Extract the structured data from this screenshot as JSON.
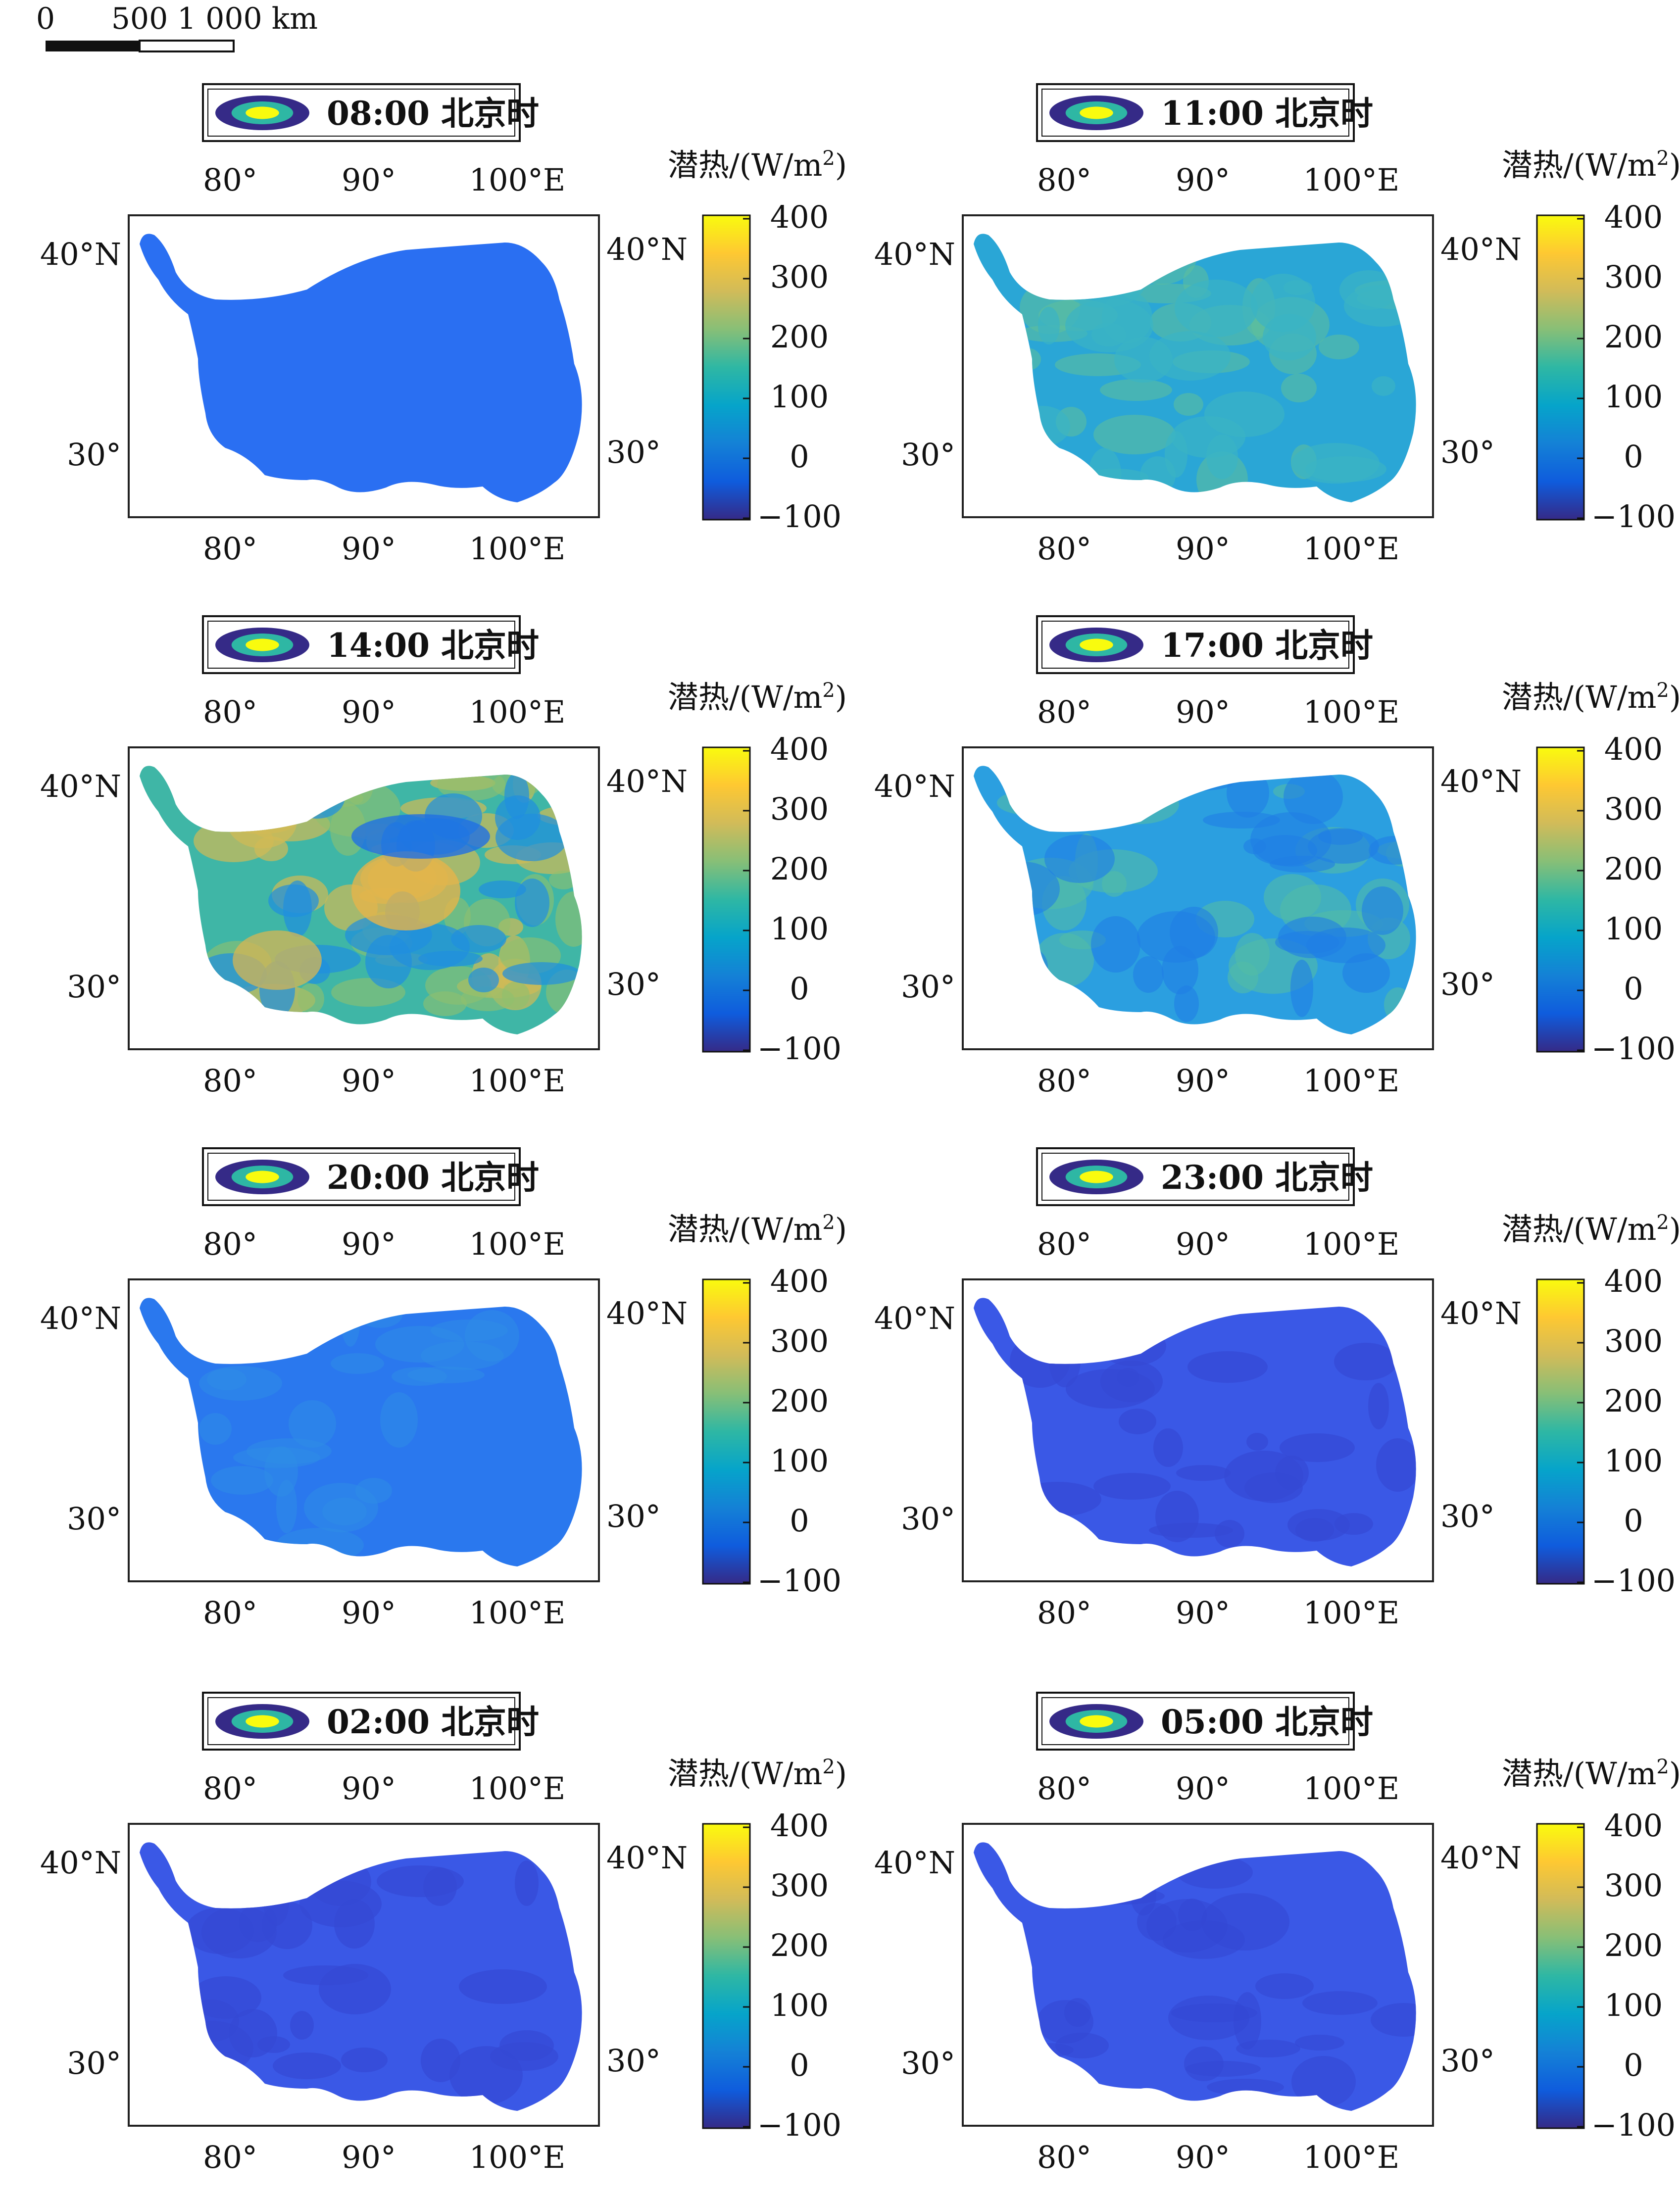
{
  "scalebar": {
    "labels": [
      "0",
      "500",
      "1 000 km"
    ]
  },
  "panels": [
    {
      "time": "08:00 北京时",
      "variant": "v08"
    },
    {
      "time": "11:00 北京时",
      "variant": "v11"
    },
    {
      "time": "14:00 北京时",
      "variant": "v14"
    },
    {
      "time": "17:00 北京时",
      "variant": "v17"
    },
    {
      "time": "20:00 北京时",
      "variant": "v20"
    },
    {
      "time": "23:00 北京时",
      "variant": "v23"
    },
    {
      "time": "02:00 北京时",
      "variant": "v02"
    },
    {
      "time": "05:00 北京时",
      "variant": "v05"
    }
  ],
  "axes": {
    "lon_labels": [
      "80°",
      "90°",
      "100°E"
    ],
    "lat_labels": [
      "40°N",
      "30°"
    ]
  },
  "colorbar": {
    "title": "潜热/(W/m",
    "title_sup": "2",
    "title_end": ")",
    "ticks": [
      "400",
      "300",
      "200",
      "100",
      "0",
      "−100"
    ],
    "range": [
      -100,
      400
    ],
    "colormap": [
      "#352a87",
      "#0f5cdd",
      "#1481d6",
      "#06a4ca",
      "#2eb7a4",
      "#87bf77",
      "#d1bb59",
      "#fec832",
      "#f9fb0e"
    ]
  },
  "layers": {
    "v08": {
      "base": "#2a6ff2",
      "blotches": []
    },
    "v11": {
      "base": "#2aa6d6",
      "blotches": [
        [
          "#5fbf9a",
          0.55
        ],
        [
          "#3ab4c4",
          0.7
        ]
      ]
    },
    "v14": {
      "base": "#3fb6a6",
      "blotches": [
        [
          "#d2bb55",
          0.7
        ],
        [
          "#8fc06e",
          0.6
        ],
        [
          "#1f8ee0",
          0.7
        ]
      ]
    },
    "v17": {
      "base": "#2b9fe0",
      "blotches": [
        [
          "#52bca6",
          0.6
        ],
        [
          "#1f7ee4",
          0.6
        ]
      ]
    },
    "v20": {
      "base": "#2a78ee",
      "blotches": [
        [
          "#2e8ee6",
          0.5
        ]
      ]
    },
    "v23": {
      "base": "#3a58e6",
      "blotches": [
        [
          "#3448d4",
          0.7
        ]
      ]
    },
    "v02": {
      "base": "#3a58e6",
      "blotches": [
        [
          "#3448d4",
          0.7
        ]
      ]
    },
    "v05": {
      "base": "#3a58e6",
      "blotches": [
        [
          "#3448d4",
          0.6
        ]
      ]
    }
  }
}
